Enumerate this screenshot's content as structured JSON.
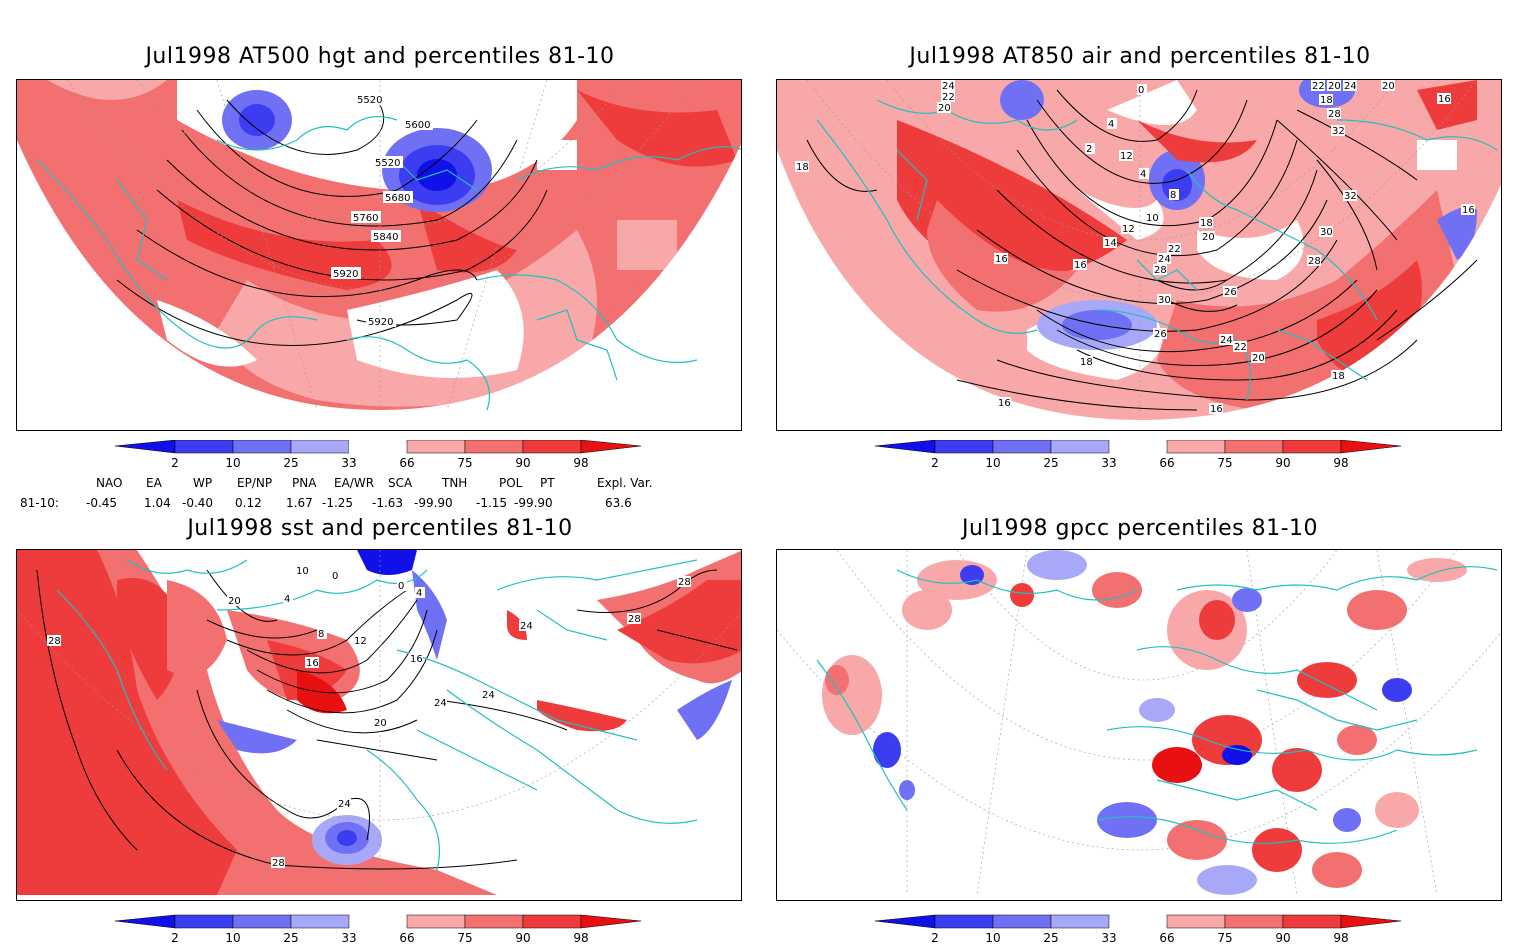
{
  "panels": [
    {
      "title": "Jul1998 AT500 hgt and percentiles 81-10",
      "contour_labels": [
        "5520",
        "5600",
        "5520",
        "5680",
        "5760",
        "5840",
        "5920",
        "5920"
      ]
    },
    {
      "title": "Jul1998 AT850 air and percentiles 81-10",
      "contour_labels": [
        "24",
        "22",
        "20",
        "18",
        "0",
        "4",
        "2",
        "12",
        "4",
        "8",
        "10",
        "12",
        "14",
        "16",
        "16",
        "18",
        "20",
        "22",
        "24",
        "28",
        "30",
        "26",
        "26",
        "24",
        "22",
        "20",
        "18",
        "16",
        "16",
        "18",
        "28",
        "30",
        "32",
        "32",
        "28",
        "20",
        "16",
        "18",
        "20",
        "22",
        "24",
        "16"
      ]
    },
    {
      "title": "Jul1998 sst and percentiles 81-10",
      "contour_labels": [
        "28",
        "20",
        "10",
        "4",
        "0",
        "8",
        "12",
        "16",
        "20",
        "24",
        "16",
        "24",
        "24",
        "28",
        "28",
        "24",
        "28",
        "0",
        "4"
      ]
    },
    {
      "title": "Jul1998 gpcc percentiles 81-10",
      "contour_labels": []
    }
  ],
  "colorbar": {
    "ticks": [
      "2",
      "10",
      "25",
      "33",
      "66",
      "75",
      "90",
      "98"
    ],
    "colors": [
      "#1010e8",
      "#3c3cf0",
      "#7070f4",
      "#a8a8f8",
      "#ffffff",
      "#f8a8a8",
      "#f27070",
      "#ee3c3c",
      "#e81010"
    ]
  },
  "indices": {
    "headers": [
      "NAO",
      "EA",
      "WP",
      "EP/NP",
      "PNA",
      "EA/WR",
      "SCA",
      "TNH",
      "POL",
      "PT",
      "Expl. Var."
    ],
    "row_label": "81-10:",
    "values": [
      "-0.45",
      "1.04",
      "-0.40",
      "0.12",
      "1.67",
      "-1.25",
      "-1.63",
      "-99.90",
      "-1.15",
      "-99.90",
      "63.6"
    ]
  },
  "colors": {
    "coast": "#20c0c0",
    "contour": "#000000",
    "grid": "#999999"
  }
}
